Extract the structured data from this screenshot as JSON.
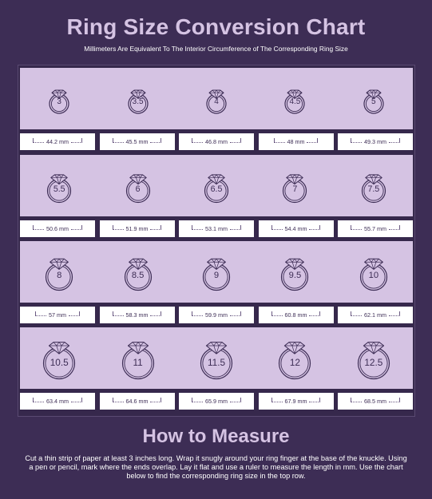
{
  "title": "Ring Size Conversion Chart",
  "subtitle": "Millimeters Are Equivalent To The Interior Circumference of The Corresponding Ring Size",
  "colors": {
    "background": "#3d2d55",
    "accent": "#d5c3e3",
    "ring_stroke": "#3d2d55",
    "mm_box": "#ffffff"
  },
  "rows": [
    {
      "rings": [
        {
          "size": "3",
          "mm": "44.2 mm"
        },
        {
          "size": "3.5",
          "mm": "45.5 mm"
        },
        {
          "size": "4",
          "mm": "46.8 mm"
        },
        {
          "size": "4.5",
          "mm": "48 mm"
        },
        {
          "size": "5",
          "mm": "49.3 mm"
        }
      ]
    },
    {
      "rings": [
        {
          "size": "5.5",
          "mm": "50.6 mm"
        },
        {
          "size": "6",
          "mm": "51.9 mm"
        },
        {
          "size": "6.5",
          "mm": "53.1 mm"
        },
        {
          "size": "7",
          "mm": "54.4 mm"
        },
        {
          "size": "7.5",
          "mm": "55.7 mm"
        }
      ]
    },
    {
      "rings": [
        {
          "size": "8",
          "mm": "57 mm"
        },
        {
          "size": "8.5",
          "mm": "58.3 mm"
        },
        {
          "size": "9",
          "mm": "59.9 mm"
        },
        {
          "size": "9.5",
          "mm": "60.8 mm"
        },
        {
          "size": "10",
          "mm": "62.1 mm"
        }
      ]
    },
    {
      "rings": [
        {
          "size": "10.5",
          "mm": "63.4 mm"
        },
        {
          "size": "11",
          "mm": "64.6 mm"
        },
        {
          "size": "11.5",
          "mm": "65.9 mm"
        },
        {
          "size": "12",
          "mm": "67.9 mm"
        },
        {
          "size": "12.5",
          "mm": "68.5 mm"
        }
      ]
    }
  ],
  "ring_icon": "diamond-ring-icon",
  "how_to": {
    "title": "How to Measure",
    "text": "Cut a thin strip of paper at least 3 inches long. Wrap it snugly around your ring finger at the base of the knuckle. Using a pen or pencil, mark where the ends overlap. Lay it flat and use a ruler to measure the length in mm. Use the chart below to find the corresponding ring size in the top row."
  }
}
